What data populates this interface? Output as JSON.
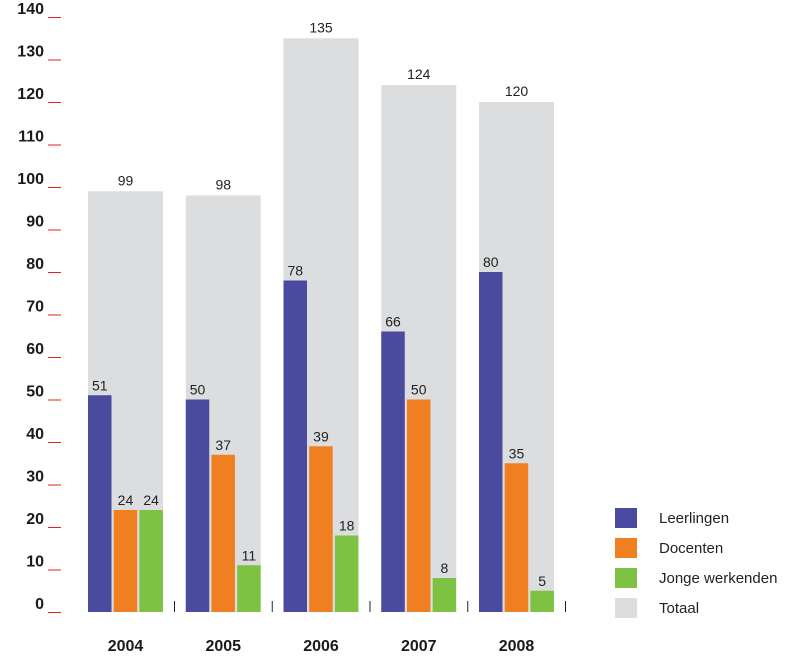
{
  "chart_data": {
    "type": "bar",
    "title": "",
    "xlabel": "",
    "ylabel": "",
    "categories": [
      "2004",
      "2005",
      "2006",
      "2007",
      "2008"
    ],
    "ylim": [
      0,
      140
    ],
    "yticks": [
      0,
      10,
      20,
      30,
      40,
      50,
      60,
      70,
      80,
      90,
      100,
      110,
      120,
      130,
      140
    ],
    "ytick_labels": [
      "0",
      "10",
      "20",
      "30",
      "40",
      "50",
      "60",
      "70",
      "80",
      "90",
      "100",
      "110",
      "120",
      "130",
      "140"
    ],
    "grid": false,
    "legend_position": "bottom-right",
    "total": {
      "name": "Totaal",
      "color": "#dcdddf",
      "values": [
        99,
        98,
        135,
        124,
        120
      ]
    },
    "series": [
      {
        "name": "Leerlingen",
        "color": "#4a4a9e",
        "values": [
          51,
          50,
          78,
          66,
          80
        ]
      },
      {
        "name": "Docenten",
        "color": "#f07f22",
        "values": [
          24,
          37,
          39,
          50,
          35
        ]
      },
      {
        "name": "Jonge werkenden",
        "color": "#7dc242",
        "values": [
          24,
          11,
          18,
          8,
          5
        ]
      }
    ],
    "tick_mark_color": "#e2231a"
  }
}
